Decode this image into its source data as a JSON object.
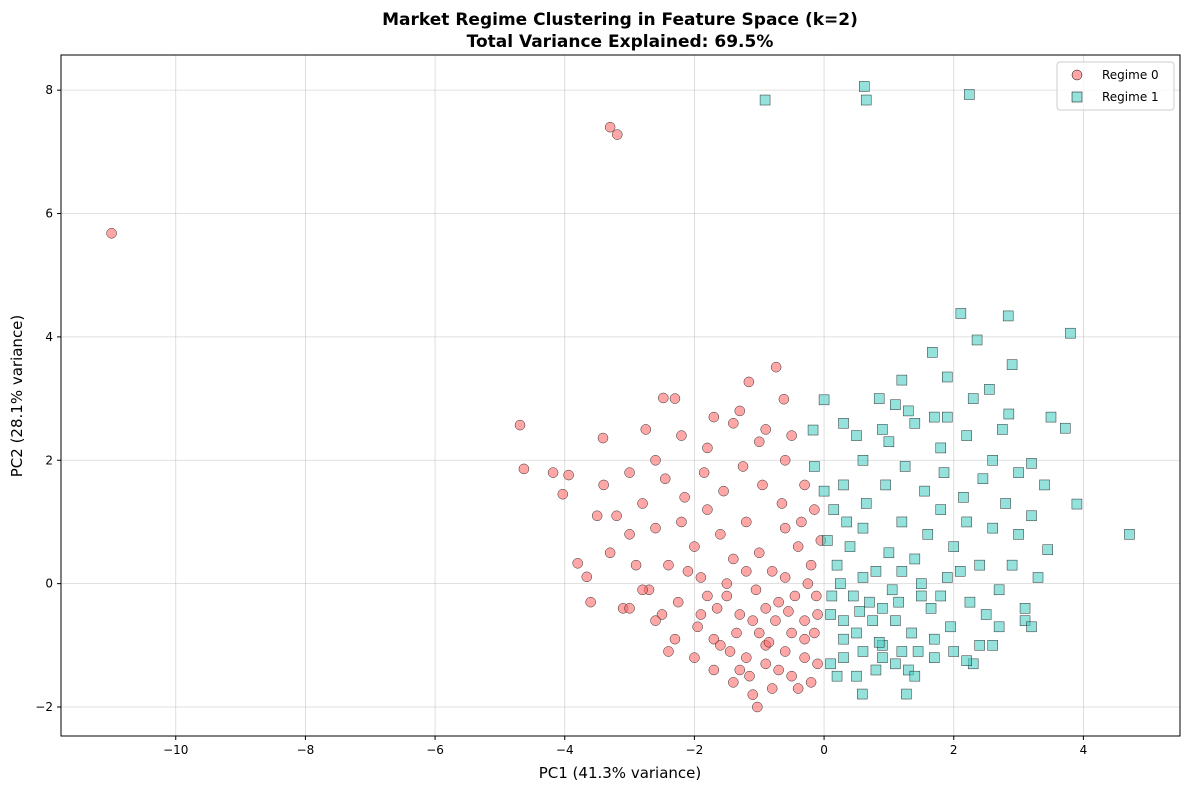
{
  "chart_data": {
    "type": "scatter",
    "title": "Market Regime Clustering in Feature Space (k=2)",
    "subtitle": "Total Variance Explained: 69.5%",
    "xlabel": "PC1 (41.3% variance)",
    "ylabel": "PC2 (28.1% variance)",
    "xlim": [
      -11.77,
      5.49
    ],
    "ylim": [
      -2.47,
      8.57
    ],
    "xticks": [
      -10,
      -8,
      -6,
      -4,
      -2,
      0,
      2,
      4
    ],
    "yticks": [
      -2,
      0,
      2,
      4,
      6,
      8
    ],
    "grid": true,
    "legend_position": "top-right",
    "series": [
      {
        "name": "Regime 0",
        "marker": "circle",
        "color": "#FF6B6B",
        "points": [
          [
            -10.99,
            5.68
          ],
          [
            -3.3,
            7.4
          ],
          [
            -3.19,
            7.28
          ],
          [
            -4.69,
            2.57
          ],
          [
            -4.63,
            1.86
          ],
          [
            -4.18,
            1.8
          ],
          [
            -3.94,
            1.76
          ],
          [
            -4.03,
            1.45
          ],
          [
            -3.8,
            0.33
          ],
          [
            -3.66,
            0.11
          ],
          [
            -3.6,
            -0.3
          ],
          [
            -0.74,
            3.51
          ],
          [
            -3.41,
            2.36
          ],
          [
            -1.16,
            3.27
          ],
          [
            -0.62,
            2.99
          ],
          [
            -2.48,
            3.01
          ],
          [
            -1.03,
            -2.0
          ],
          [
            -0.1,
            -0.5
          ],
          [
            -0.3,
            -1.2
          ],
          [
            -0.5,
            -0.8
          ],
          [
            -0.7,
            -0.3
          ],
          [
            -0.9,
            -1.0
          ],
          [
            -1.1,
            -0.6
          ],
          [
            -1.3,
            -1.4
          ],
          [
            -1.5,
            -0.2
          ],
          [
            -1.7,
            -0.9
          ],
          [
            -1.9,
            0.1
          ],
          [
            -0.2,
            0.3
          ],
          [
            -0.4,
            0.6
          ],
          [
            -0.6,
            0.9
          ],
          [
            -0.8,
            0.2
          ],
          [
            -1.0,
            0.5
          ],
          [
            -1.2,
            1.0
          ],
          [
            -1.4,
            0.4
          ],
          [
            -1.6,
            0.8
          ],
          [
            -1.8,
            1.2
          ],
          [
            -2.0,
            0.6
          ],
          [
            -2.2,
            1.0
          ],
          [
            -2.4,
            0.3
          ],
          [
            -2.6,
            0.9
          ],
          [
            -2.8,
            1.3
          ],
          [
            -3.0,
            0.8
          ],
          [
            -3.2,
            1.1
          ],
          [
            -3.4,
            1.6
          ],
          [
            -3.0,
            1.8
          ],
          [
            -2.6,
            2.0
          ],
          [
            -2.2,
            2.4
          ],
          [
            -1.8,
            2.2
          ],
          [
            -1.4,
            2.6
          ],
          [
            -1.0,
            2.3
          ],
          [
            -0.6,
            2.0
          ],
          [
            -0.3,
            1.6
          ],
          [
            -0.15,
            1.2
          ],
          [
            -0.2,
            -1.6
          ],
          [
            -0.5,
            -1.5
          ],
          [
            -0.8,
            -1.7
          ],
          [
            -1.1,
            -1.8
          ],
          [
            -1.4,
            -1.6
          ],
          [
            -1.7,
            -1.4
          ],
          [
            -2.0,
            -1.2
          ],
          [
            -2.3,
            -0.9
          ],
          [
            -2.5,
            -0.5
          ],
          [
            -2.7,
            -0.1
          ],
          [
            -2.9,
            0.3
          ],
          [
            -3.1,
            -0.4
          ],
          [
            -2.4,
            -1.1
          ],
          [
            -1.2,
            -1.2
          ],
          [
            -0.9,
            -1.3
          ],
          [
            -0.6,
            -1.1
          ],
          [
            -0.3,
            -0.9
          ],
          [
            -0.1,
            -1.3
          ],
          [
            -0.45,
            -0.2
          ],
          [
            -0.75,
            -0.6
          ],
          [
            -1.05,
            -0.1
          ],
          [
            -1.35,
            -0.8
          ],
          [
            -1.65,
            -0.4
          ],
          [
            -1.95,
            -0.7
          ],
          [
            -2.25,
            -0.3
          ],
          [
            -0.25,
            0.0
          ],
          [
            -0.55,
            -0.45
          ],
          [
            -0.85,
            -0.95
          ],
          [
            -1.15,
            -1.5
          ],
          [
            -1.45,
            -1.1
          ],
          [
            -0.35,
            1.0
          ],
          [
            -0.65,
            1.3
          ],
          [
            -0.95,
            1.6
          ],
          [
            -1.25,
            1.9
          ],
          [
            -1.55,
            1.5
          ],
          [
            -1.85,
            1.8
          ],
          [
            -2.15,
            1.4
          ],
          [
            -2.45,
            1.7
          ],
          [
            -2.75,
            2.5
          ],
          [
            -2.3,
            3.0
          ],
          [
            -1.7,
            2.7
          ],
          [
            -1.3,
            2.8
          ],
          [
            -0.9,
            2.5
          ],
          [
            -0.5,
            2.4
          ],
          [
            -0.05,
            0.7
          ],
          [
            -0.12,
            -0.2
          ],
          [
            -0.3,
            -0.6
          ],
          [
            -0.6,
            0.1
          ],
          [
            -0.9,
            -0.4
          ],
          [
            -1.2,
            0.2
          ],
          [
            -1.5,
            0.0
          ],
          [
            -1.8,
            -0.2
          ],
          [
            -2.1,
            0.2
          ],
          [
            -0.7,
            -1.4
          ],
          [
            -1.0,
            -0.8
          ],
          [
            -1.3,
            -0.5
          ],
          [
            -1.6,
            -1.0
          ],
          [
            -1.9,
            -0.5
          ],
          [
            -2.6,
            -0.6
          ],
          [
            -3.5,
            1.1
          ],
          [
            -3.3,
            0.5
          ],
          [
            -3.0,
            -0.4
          ],
          [
            -2.8,
            -0.1
          ],
          [
            -0.4,
            -1.7
          ],
          [
            -0.15,
            -0.8
          ]
        ]
      },
      {
        "name": "Regime 1",
        "marker": "square",
        "color": "#4ECDC4",
        "points": [
          [
            -0.91,
            7.84
          ],
          [
            0.62,
            8.06
          ],
          [
            0.65,
            7.84
          ],
          [
            2.24,
            7.93
          ],
          [
            2.11,
            4.38
          ],
          [
            2.84,
            4.34
          ],
          [
            3.8,
            4.06
          ],
          [
            1.67,
            3.75
          ],
          [
            2.36,
            3.95
          ],
          [
            4.71,
            0.8
          ],
          [
            3.9,
            1.29
          ],
          [
            3.72,
            2.52
          ],
          [
            1.27,
            -1.79
          ],
          [
            0.59,
            -1.79
          ],
          [
            -0.17,
            2.49
          ],
          [
            0.0,
            2.98
          ],
          [
            0.1,
            -0.5
          ],
          [
            0.3,
            -1.2
          ],
          [
            0.5,
            -0.8
          ],
          [
            0.7,
            -0.3
          ],
          [
            0.9,
            -1.0
          ],
          [
            1.1,
            -0.6
          ],
          [
            1.3,
            -1.4
          ],
          [
            1.5,
            -0.2
          ],
          [
            1.7,
            -0.9
          ],
          [
            1.9,
            0.1
          ],
          [
            0.2,
            0.3
          ],
          [
            0.4,
            0.6
          ],
          [
            0.6,
            0.9
          ],
          [
            0.8,
            0.2
          ],
          [
            1.0,
            0.5
          ],
          [
            1.2,
            1.0
          ],
          [
            1.4,
            0.4
          ],
          [
            1.6,
            0.8
          ],
          [
            1.8,
            1.2
          ],
          [
            2.0,
            0.6
          ],
          [
            2.2,
            1.0
          ],
          [
            2.4,
            0.3
          ],
          [
            2.6,
            0.9
          ],
          [
            2.8,
            1.3
          ],
          [
            3.0,
            0.8
          ],
          [
            3.2,
            1.1
          ],
          [
            3.4,
            1.6
          ],
          [
            3.0,
            1.8
          ],
          [
            2.6,
            2.0
          ],
          [
            2.2,
            2.4
          ],
          [
            1.8,
            2.2
          ],
          [
            1.4,
            2.6
          ],
          [
            1.0,
            2.3
          ],
          [
            0.6,
            2.0
          ],
          [
            0.3,
            1.6
          ],
          [
            0.15,
            1.2
          ],
          [
            0.2,
            -1.5
          ],
          [
            0.5,
            -1.5
          ],
          [
            0.8,
            -1.4
          ],
          [
            1.1,
            -1.3
          ],
          [
            1.4,
            -1.5
          ],
          [
            1.7,
            -1.2
          ],
          [
            2.0,
            -1.1
          ],
          [
            2.3,
            -1.3
          ],
          [
            2.5,
            -0.5
          ],
          [
            2.7,
            -0.1
          ],
          [
            2.9,
            0.3
          ],
          [
            3.1,
            -0.4
          ],
          [
            2.4,
            -1.0
          ],
          [
            1.2,
            -1.1
          ],
          [
            0.9,
            -1.2
          ],
          [
            0.6,
            -1.1
          ],
          [
            0.3,
            -0.9
          ],
          [
            0.1,
            -1.3
          ],
          [
            0.45,
            -0.2
          ],
          [
            0.75,
            -0.6
          ],
          [
            1.05,
            -0.1
          ],
          [
            1.35,
            -0.8
          ],
          [
            1.65,
            -0.4
          ],
          [
            1.95,
            -0.7
          ],
          [
            2.25,
            -0.3
          ],
          [
            0.25,
            0.0
          ],
          [
            0.55,
            -0.45
          ],
          [
            0.85,
            -0.95
          ],
          [
            1.15,
            -0.3
          ],
          [
            1.45,
            -1.1
          ],
          [
            0.35,
            1.0
          ],
          [
            0.65,
            1.3
          ],
          [
            0.95,
            1.6
          ],
          [
            1.25,
            1.9
          ],
          [
            1.55,
            1.5
          ],
          [
            1.85,
            1.8
          ],
          [
            2.15,
            1.4
          ],
          [
            2.45,
            1.7
          ],
          [
            2.75,
            2.5
          ],
          [
            2.3,
            3.0
          ],
          [
            1.7,
            2.7
          ],
          [
            1.3,
            2.8
          ],
          [
            0.9,
            2.5
          ],
          [
            0.5,
            2.4
          ],
          [
            0.05,
            0.7
          ],
          [
            0.12,
            -0.2
          ],
          [
            0.3,
            -0.6
          ],
          [
            0.6,
            0.1
          ],
          [
            0.9,
            -0.4
          ],
          [
            1.2,
            0.2
          ],
          [
            1.5,
            0.0
          ],
          [
            1.8,
            -0.2
          ],
          [
            2.1,
            0.2
          ],
          [
            2.7,
            -0.7
          ],
          [
            3.3,
            0.1
          ],
          [
            3.45,
            0.55
          ],
          [
            3.2,
            1.95
          ],
          [
            2.85,
            2.75
          ],
          [
            2.9,
            3.55
          ],
          [
            3.5,
            2.7
          ],
          [
            2.55,
            3.15
          ],
          [
            0.85,
            3.0
          ],
          [
            1.2,
            3.3
          ],
          [
            1.9,
            2.7
          ],
          [
            1.9,
            3.35
          ],
          [
            1.1,
            2.9
          ],
          [
            0.3,
            2.6
          ],
          [
            -0.15,
            1.9
          ],
          [
            0.0,
            1.5
          ],
          [
            3.1,
            -0.6
          ],
          [
            3.2,
            -0.7
          ],
          [
            2.6,
            -1.0
          ],
          [
            2.2,
            -1.25
          ]
        ]
      }
    ]
  }
}
